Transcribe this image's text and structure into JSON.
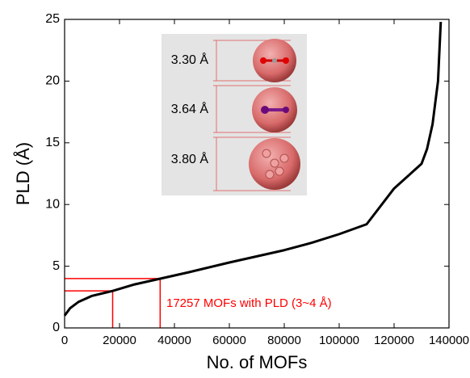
{
  "chart_data": {
    "type": "line",
    "x_label": "No. of MOFs",
    "y_label": "PLD (Å)",
    "x": [
      0,
      2000,
      5000,
      10000,
      17500,
      25000,
      35000,
      45000,
      60000,
      70000,
      80000,
      90000,
      100000,
      110000,
      120000,
      128000,
      130000,
      132000,
      134000,
      136000,
      137000
    ],
    "series": [
      {
        "color": "#000000",
        "values": [
          1.0,
          1.6,
          2.1,
          2.6,
          3.0,
          3.5,
          4.0,
          4.5,
          5.3,
          5.8,
          6.3,
          6.9,
          7.6,
          8.4,
          11.3,
          12.9,
          13.3,
          14.5,
          16.5,
          20,
          24.8
        ]
      }
    ],
    "xlim": [
      0,
      140000
    ],
    "xticks": [
      0,
      20000,
      40000,
      60000,
      80000,
      100000,
      120000,
      140000
    ],
    "ylim": [
      0,
      25
    ],
    "yticks": [
      0,
      5,
      10,
      15,
      20,
      25
    ],
    "reference_lines": [
      {
        "x": 17500,
        "y": 3
      },
      {
        "x": 34800,
        "y": 4
      }
    ],
    "reference_color": "#ff0000",
    "annotation": "17257 MOFs with PLD (3~4 Å)",
    "inset_labels": [
      "3.30 Å",
      "3.64 Å",
      "3.80 Å"
    ]
  }
}
